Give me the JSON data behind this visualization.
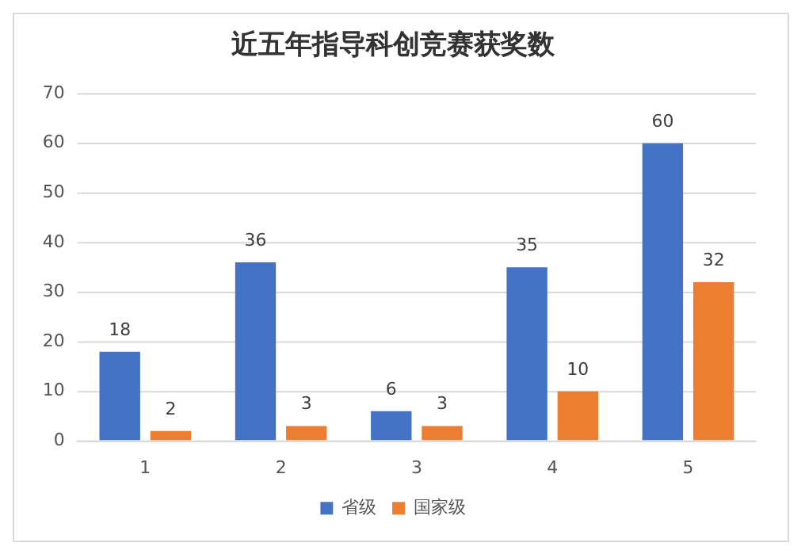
{
  "chart_data": {
    "type": "bar",
    "title": "近五年指导科创竞赛获奖数",
    "categories": [
      "1",
      "2",
      "3",
      "4",
      "5"
    ],
    "series": [
      {
        "name": "省级",
        "color": "#4472c4",
        "values": [
          18,
          36,
          6,
          35,
          60
        ]
      },
      {
        "name": "国家级",
        "color": "#ed7d31",
        "values": [
          2,
          3,
          3,
          10,
          32
        ]
      }
    ],
    "ylim": [
      0,
      70
    ],
    "yticks": [
      0,
      10,
      20,
      30,
      40,
      50,
      60,
      70
    ],
    "grid": "y",
    "legend": "bottom",
    "data_labels": true
  }
}
